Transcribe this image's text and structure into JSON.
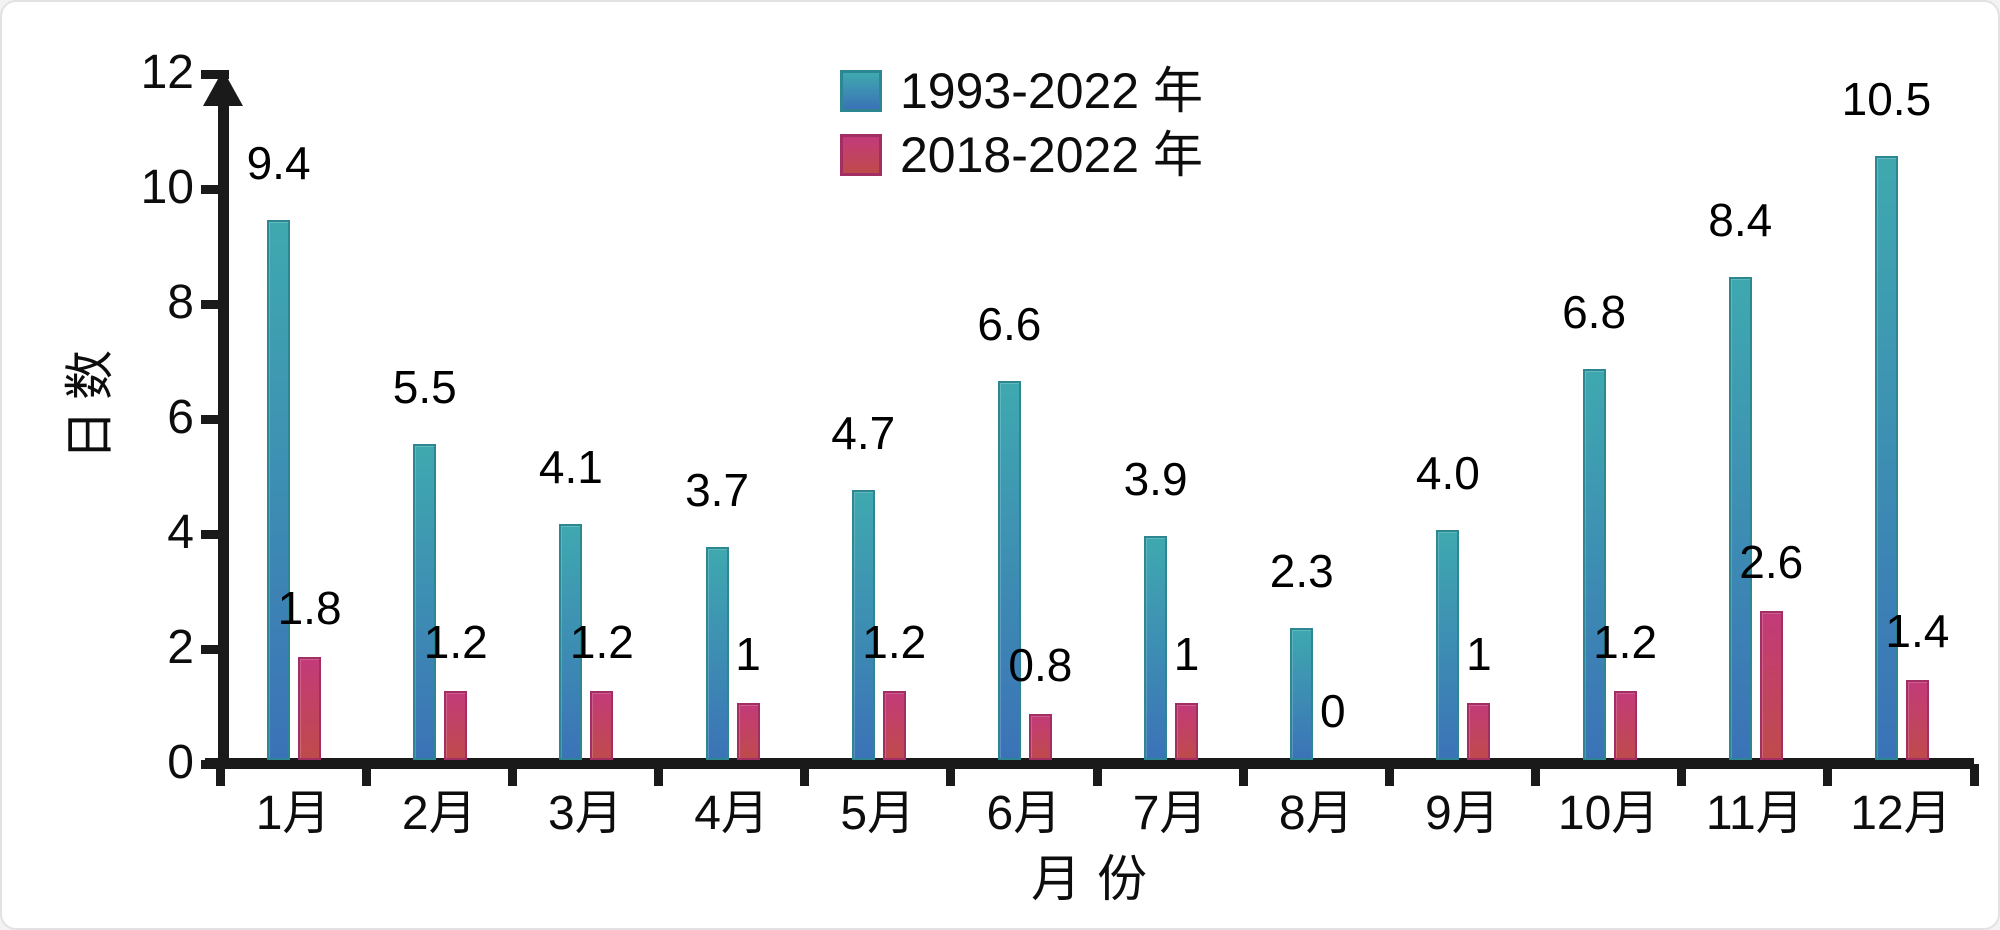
{
  "chart_data": {
    "type": "bar",
    "title": "",
    "xlabel": "月份",
    "ylabel": "日数",
    "categories": [
      "1月",
      "2月",
      "3月",
      "4月",
      "5月",
      "6月",
      "7月",
      "8月",
      "9月",
      "10月",
      "11月",
      "12月"
    ],
    "series": [
      {
        "name": "1993-2022 年",
        "values": [
          9.4,
          5.5,
          4.1,
          3.7,
          4.7,
          6.6,
          3.9,
          2.3,
          4.0,
          6.8,
          8.4,
          10.5
        ],
        "labels": [
          "9.4",
          "5.5",
          "4.1",
          "3.7",
          "4.7",
          "6.6",
          "3.9",
          "2.3",
          "4.0",
          "6.8",
          "8.4",
          "10.5"
        ],
        "color_top": "#3FA9AF",
        "color_bottom": "#3B72B7",
        "border_color": "#2C8793"
      },
      {
        "name": "2018-2022 年",
        "values": [
          1.8,
          1.2,
          1.2,
          1,
          1.2,
          0.8,
          1,
          0,
          1,
          1.2,
          2.6,
          1.4
        ],
        "labels": [
          "1.8",
          "1.2",
          "1.2",
          "1",
          "1.2",
          "0.8",
          "1",
          "0",
          "1",
          "1.2",
          "2.6",
          "1.4"
        ],
        "color_top": "#C33A7A",
        "color_bottom": "#BF4B4B",
        "border_color": "#A22E63"
      }
    ],
    "ylim": [
      0,
      12
    ],
    "ytick_step": 2,
    "yticks": [
      "0",
      "2",
      "4",
      "6",
      "8",
      "10",
      "12"
    ],
    "legend_position": "top-center",
    "grid": false,
    "axis_color": "#1a1a1a",
    "background": "#ffffff"
  }
}
